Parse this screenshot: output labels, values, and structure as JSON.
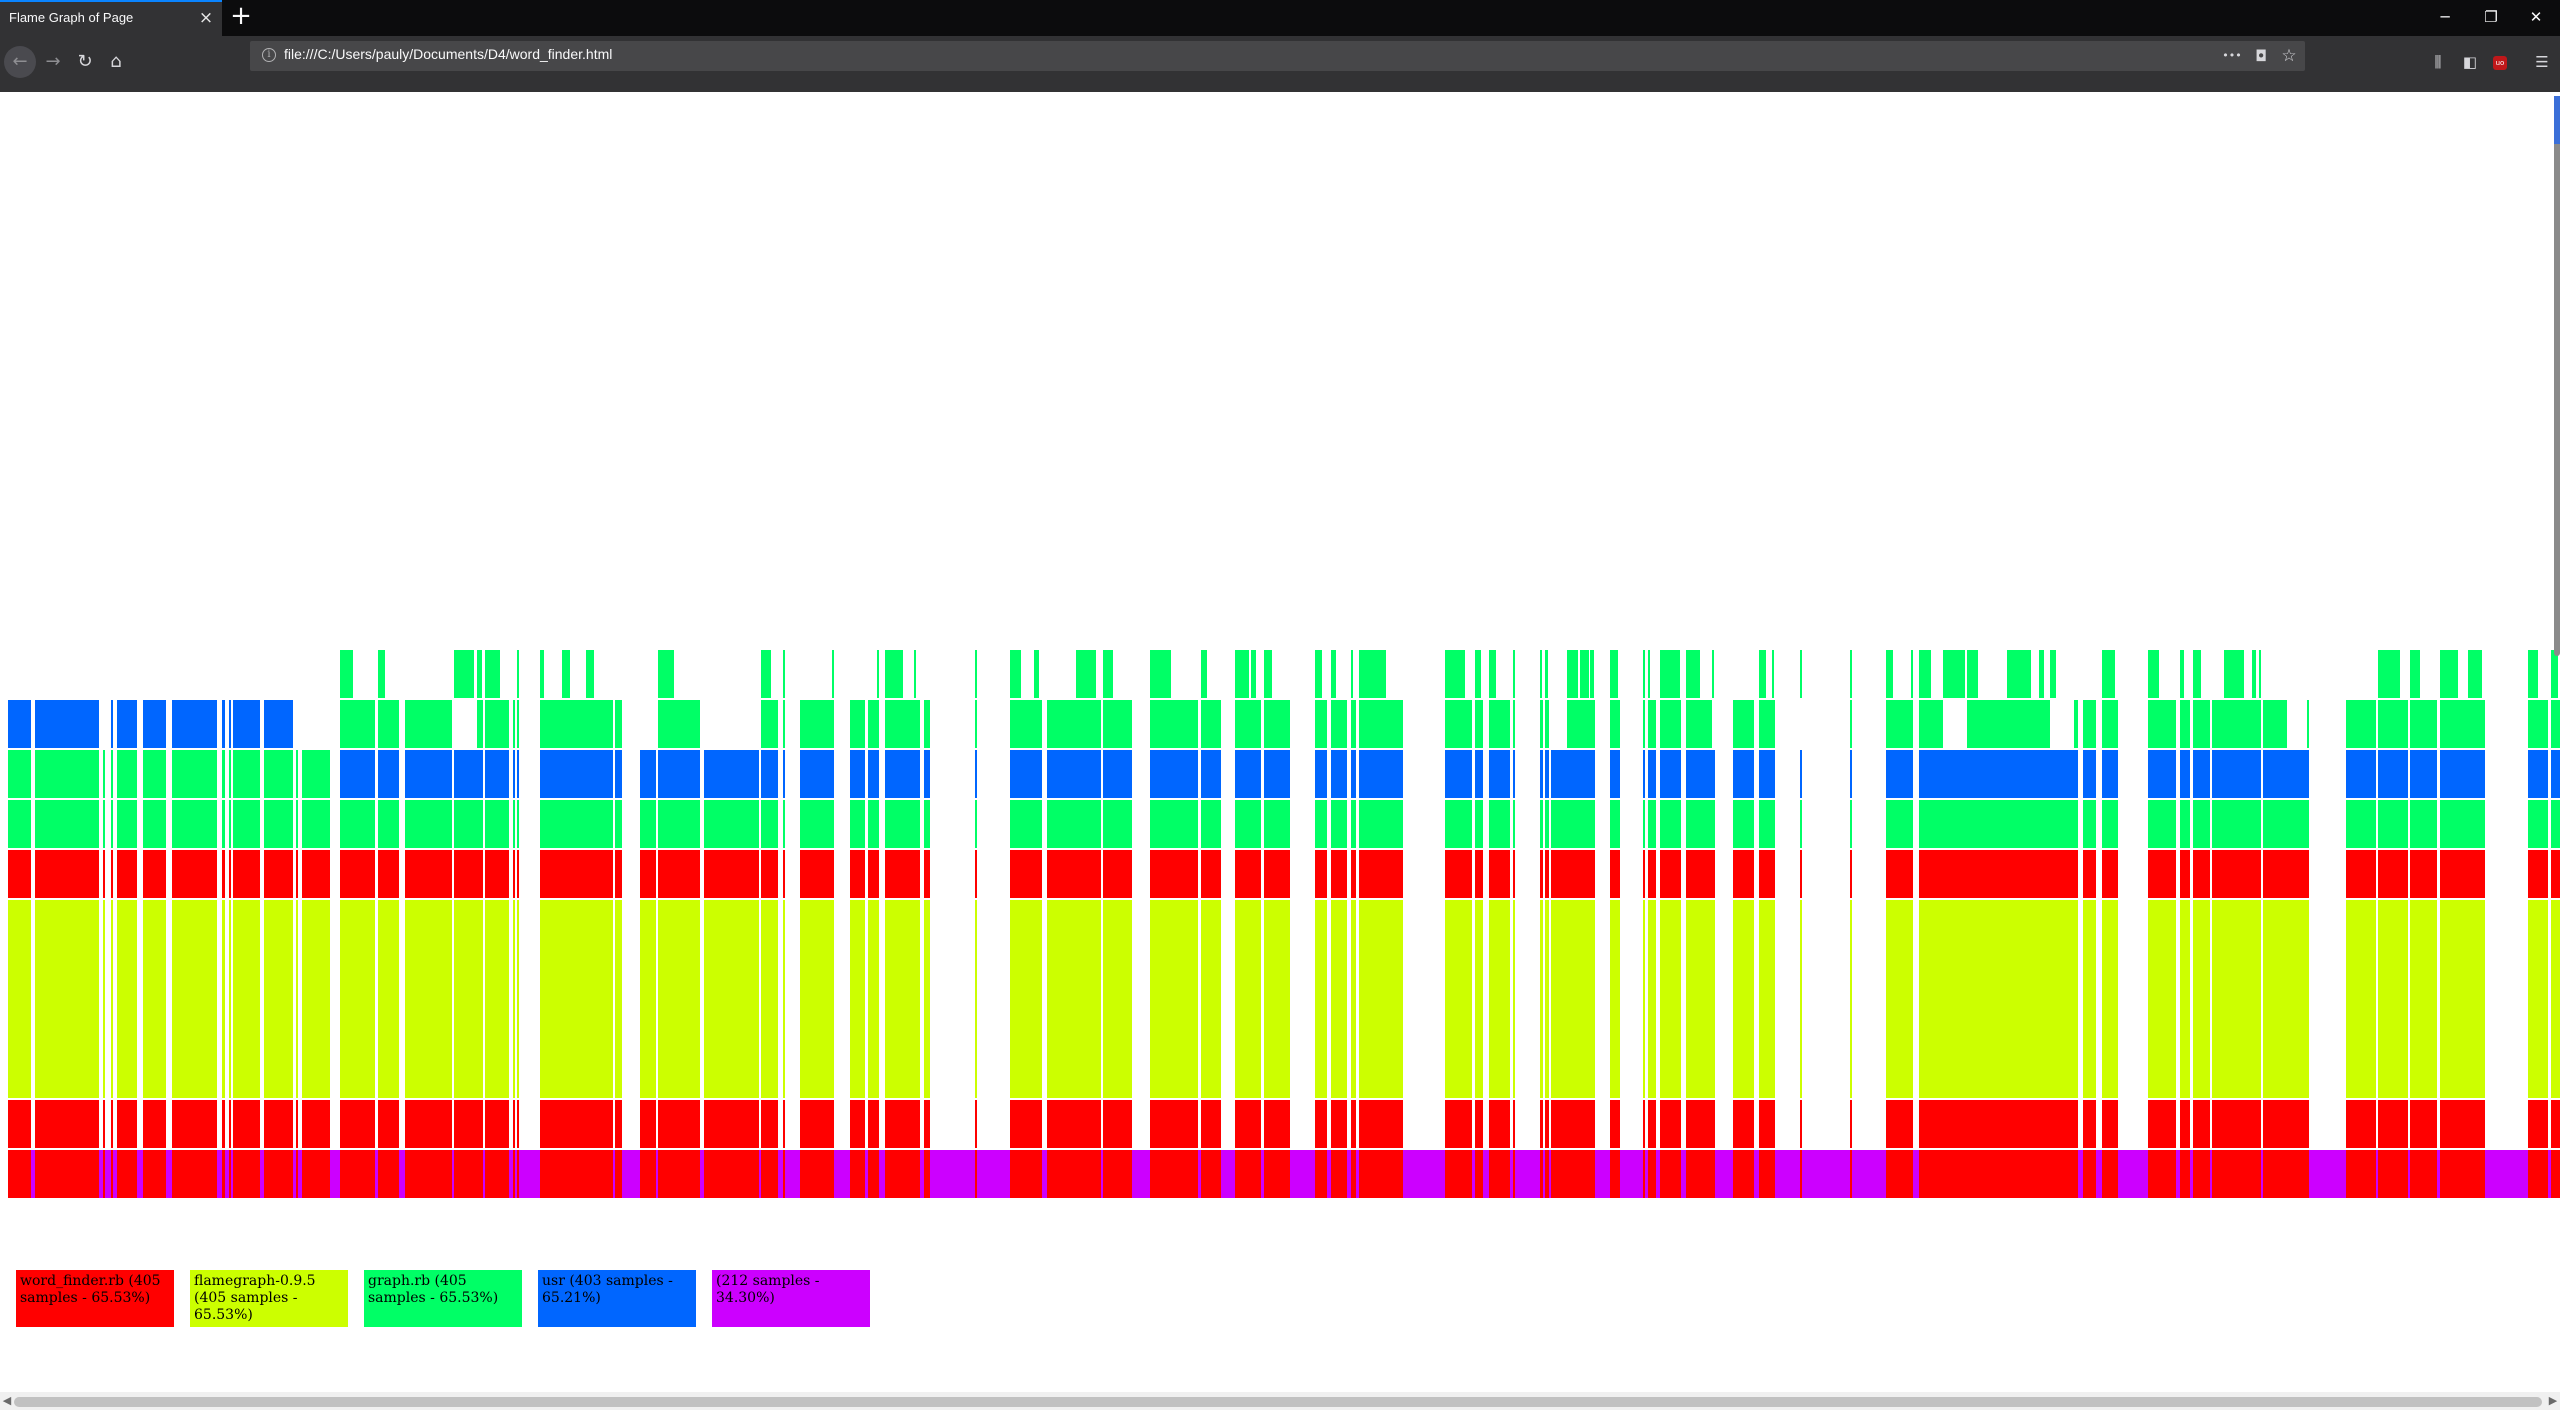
{
  "browser": {
    "tab_title": "Flame Graph of Page",
    "tab_close": "×",
    "new_tab": "+",
    "url": "file:///C:/Users/pauly/Documents/D4/word_finder.html",
    "window_controls": {
      "minimize": "─",
      "restore": "❐",
      "close": "✕"
    },
    "nav_icons": {
      "back": "←",
      "forward": "→",
      "reload": "↻",
      "home": "⌂"
    },
    "url_actions": {
      "page_actions": "•••",
      "pocket": "◘",
      "bookmark": "☆"
    },
    "toolbar_icons": {
      "library": "⫼",
      "sidebar": "◧",
      "ublock": "uo",
      "menu": "☰"
    }
  },
  "colors": {
    "word_finder": "#ff0000",
    "flamegraph": "#ccff00",
    "graph": "#00ff66",
    "usr": "#0066ff",
    "root": "#cc00ff"
  },
  "legend": [
    {
      "key": "word_finder",
      "text": "word_finder.rb (405 samples - 65.53%)"
    },
    {
      "key": "flamegraph",
      "text": "flamegraph-0.9.5 (405 samples - 65.53%)"
    },
    {
      "key": "graph",
      "text": "graph.rb (405 samples - 65.53%)"
    },
    {
      "key": "usr",
      "text": "usr (403 samples - 65.21%)"
    },
    {
      "key": "root",
      "text": "(212 samples - 34.30%)"
    }
  ]
}
